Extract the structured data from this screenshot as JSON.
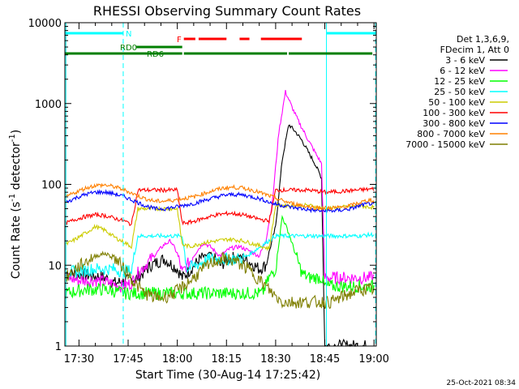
{
  "chart_data": {
    "type": "line",
    "title": "RHESSI Observing Summary Count Rates",
    "xlabel": "Start Time (30-Aug-14 17:25:42)",
    "ylabel": "Count Rate (s⁻¹ detector⁻¹)",
    "ylabel_parts": {
      "main": "Count Rate (s",
      "sup1": "-1",
      "mid": " detector",
      "sup2": "-1",
      "end": ")"
    },
    "y_scale": "log",
    "ylim": [
      1,
      10000
    ],
    "y_ticks": [
      1,
      10,
      100,
      1000,
      10000
    ],
    "x_start_min": 25.7,
    "xlim_minutes": [
      25.7,
      120.7
    ],
    "x_ticks": [
      {
        "min": 30,
        "label": "17:30"
      },
      {
        "min": 45,
        "label": "17:45"
      },
      {
        "min": 60,
        "label": "18:00"
      },
      {
        "min": 75,
        "label": "18:15"
      },
      {
        "min": 90,
        "label": "18:30"
      },
      {
        "min": 105,
        "label": "18:45"
      },
      {
        "min": 120,
        "label": "19:00"
      }
    ],
    "legend_header": [
      "Det 1,3,6,9,",
      "FDecim 1, Att 0"
    ],
    "legend_position": "right",
    "timestamp": "25-Oct-2021 08:34",
    "flags": [
      {
        "label": "N",
        "color": "#00ffff",
        "segments": [
          [
            25.7,
            43.5
          ],
          [
            105.5,
            120.5
          ]
        ]
      },
      {
        "label": "F",
        "color": "#ff0000",
        "segments": [
          [
            62,
            65.5
          ],
          [
            66.5,
            75
          ],
          [
            79,
            82
          ],
          [
            85.5,
            98
          ]
        ]
      },
      {
        "label": "RD0",
        "color": "#007f00",
        "segments": [
          [
            47.5,
            61.5
          ]
        ]
      },
      {
        "label": "RD6",
        "color": "#007f00",
        "segments": [
          [
            25.7,
            61.5
          ],
          [
            62,
            93.5
          ],
          [
            94,
            119.5
          ]
        ]
      }
    ],
    "vertical_markers": [
      {
        "min": 26.0,
        "style": "solid",
        "color": "#00ffff"
      },
      {
        "min": 43.5,
        "style": "dashed",
        "color": "#00ffff"
      },
      {
        "min": 105.5,
        "style": "solid",
        "color": "#00ffff"
      },
      {
        "min": 120.5,
        "style": "dashed",
        "color": "#00ffff"
      }
    ],
    "series": [
      {
        "name": "3 - 6 keV",
        "color": "#000000",
        "x": [
          26,
          33,
          38,
          41,
          45,
          48,
          52,
          56,
          60,
          61.5,
          63,
          67,
          70,
          73,
          76,
          79,
          82,
          85,
          87,
          90,
          92,
          94,
          96,
          98,
          100,
          102,
          104,
          105,
          108,
          112,
          116,
          120
        ],
        "y": [
          8,
          7.5,
          7,
          6,
          6.5,
          7,
          10,
          12,
          9,
          7,
          8,
          12,
          14,
          10,
          12,
          13,
          11,
          9,
          10,
          30,
          200,
          550,
          450,
          350,
          250,
          180,
          120,
          1,
          1,
          1,
          1,
          1
        ]
      },
      {
        "name": "6 - 12 keV",
        "color": "#ff00ff",
        "x": [
          26,
          30,
          35,
          40,
          43,
          46,
          48,
          52,
          56,
          58,
          60,
          61.5,
          63,
          66,
          68,
          70,
          73,
          76,
          79,
          82,
          85,
          87,
          89,
          91,
          93,
          95,
          97,
          100,
          102,
          104,
          105,
          108,
          112,
          116,
          120
        ],
        "y": [
          7,
          6.5,
          6.5,
          6,
          5.5,
          6,
          8,
          12,
          18,
          20,
          14,
          8,
          10,
          15,
          19,
          17,
          13,
          16,
          17,
          15,
          13,
          20,
          60,
          450,
          1400,
          900,
          600,
          350,
          250,
          180,
          7,
          7,
          7,
          7,
          7
        ]
      },
      {
        "name": "12 - 25 keV",
        "color": "#00ff00",
        "x": [
          26,
          32,
          38,
          44,
          46,
          48,
          52,
          56,
          60,
          61.5,
          63,
          66,
          70,
          74,
          78,
          82,
          86,
          88,
          90,
          92,
          94,
          96,
          98,
          100,
          104,
          105,
          108,
          112,
          116,
          120
        ],
        "y": [
          4.5,
          5,
          5,
          4.5,
          4.5,
          4.5,
          4.5,
          4.5,
          4.5,
          4.5,
          4.5,
          4.5,
          4.5,
          4.5,
          4.5,
          4.5,
          4.5,
          7,
          9,
          40,
          25,
          14,
          8,
          7,
          7,
          5.5,
          5.5,
          5.5,
          5.5,
          5.5
        ]
      },
      {
        "name": "25 - 50 keV",
        "color": "#00ffff",
        "x": [
          26,
          30,
          35,
          40,
          43,
          46,
          48,
          55,
          61.5,
          63,
          70,
          80,
          90,
          95,
          100,
          105,
          110,
          115,
          120
        ],
        "y": [
          8,
          8.5,
          9,
          9,
          8.5,
          8.5,
          23,
          23,
          23,
          9,
          12,
          12,
          23,
          23,
          23,
          23,
          23,
          23,
          24
        ]
      },
      {
        "name": "50 - 100 keV",
        "color": "#cccc00",
        "x": [
          26,
          29,
          32,
          35,
          38,
          41,
          44,
          46,
          48,
          52,
          56,
          60,
          61.5,
          64,
          68,
          72,
          76,
          80,
          84,
          88,
          90,
          95,
          100,
          105,
          110,
          115,
          120
        ],
        "y": [
          18,
          21,
          25,
          30,
          27,
          22,
          19,
          17,
          50,
          50,
          50,
          50,
          18,
          17,
          19,
          20,
          21,
          20,
          18,
          16,
          55,
          55,
          55,
          50,
          52,
          54,
          52
        ]
      },
      {
        "name": "100 - 300 keV",
        "color": "#ff0000",
        "x": [
          26,
          29,
          32,
          35,
          38,
          41,
          44,
          46,
          48,
          52,
          56,
          60,
          61.5,
          64,
          68,
          72,
          76,
          80,
          84,
          88,
          90,
          95,
          100,
          105,
          110,
          115,
          120
        ],
        "y": [
          33,
          37,
          40,
          42,
          41,
          38,
          35,
          32,
          85,
          85,
          85,
          85,
          33,
          34,
          38,
          42,
          44,
          42,
          38,
          35,
          85,
          85,
          85,
          80,
          82,
          85,
          88
        ]
      },
      {
        "name": "300 - 800 keV",
        "color": "#0000ff",
        "x": [
          26,
          29,
          32,
          35,
          38,
          41,
          44,
          47,
          50,
          53,
          56,
          59,
          62,
          65,
          68,
          71,
          74,
          77,
          80,
          83,
          86,
          89,
          92,
          95,
          98,
          101,
          104,
          107,
          110,
          113,
          116,
          119,
          120
        ],
        "y": [
          60,
          68,
          75,
          80,
          80,
          76,
          70,
          62,
          55,
          50,
          50,
          52,
          55,
          58,
          63,
          68,
          73,
          75,
          74,
          70,
          65,
          58,
          55,
          52,
          50,
          48,
          47,
          47,
          48,
          50,
          55,
          58,
          55
        ]
      },
      {
        "name": "800 - 7000 keV",
        "color": "#ff8000",
        "x": [
          26,
          29,
          32,
          35,
          38,
          41,
          44,
          47,
          50,
          53,
          56,
          59,
          62,
          65,
          68,
          71,
          74,
          77,
          80,
          83,
          86,
          89,
          92,
          95,
          98,
          101,
          104,
          107,
          110,
          113,
          116,
          119,
          120
        ],
        "y": [
          70,
          80,
          90,
          97,
          98,
          93,
          85,
          75,
          67,
          62,
          62,
          64,
          67,
          70,
          77,
          84,
          90,
          92,
          90,
          85,
          77,
          70,
          63,
          58,
          55,
          52,
          51,
          51,
          52,
          55,
          60,
          65,
          60
        ]
      },
      {
        "name": "7000 - 15000 keV",
        "color": "#7f7f00",
        "x": [
          26,
          29,
          32,
          35,
          38,
          41,
          44,
          47,
          50,
          53,
          56,
          59,
          62,
          65,
          68,
          71,
          74,
          77,
          80,
          83,
          86,
          89,
          92,
          95,
          98,
          101,
          104,
          107,
          110,
          113,
          116,
          119,
          120
        ],
        "y": [
          7,
          9,
          11,
          13,
          14,
          12,
          9,
          6,
          4.5,
          4,
          4,
          4.5,
          5.5,
          7,
          9,
          11,
          12,
          11.5,
          10,
          8,
          6,
          4.5,
          3.5,
          3.5,
          3.5,
          3.5,
          3.5,
          3.5,
          4,
          4.5,
          5,
          5,
          5
        ]
      }
    ]
  }
}
